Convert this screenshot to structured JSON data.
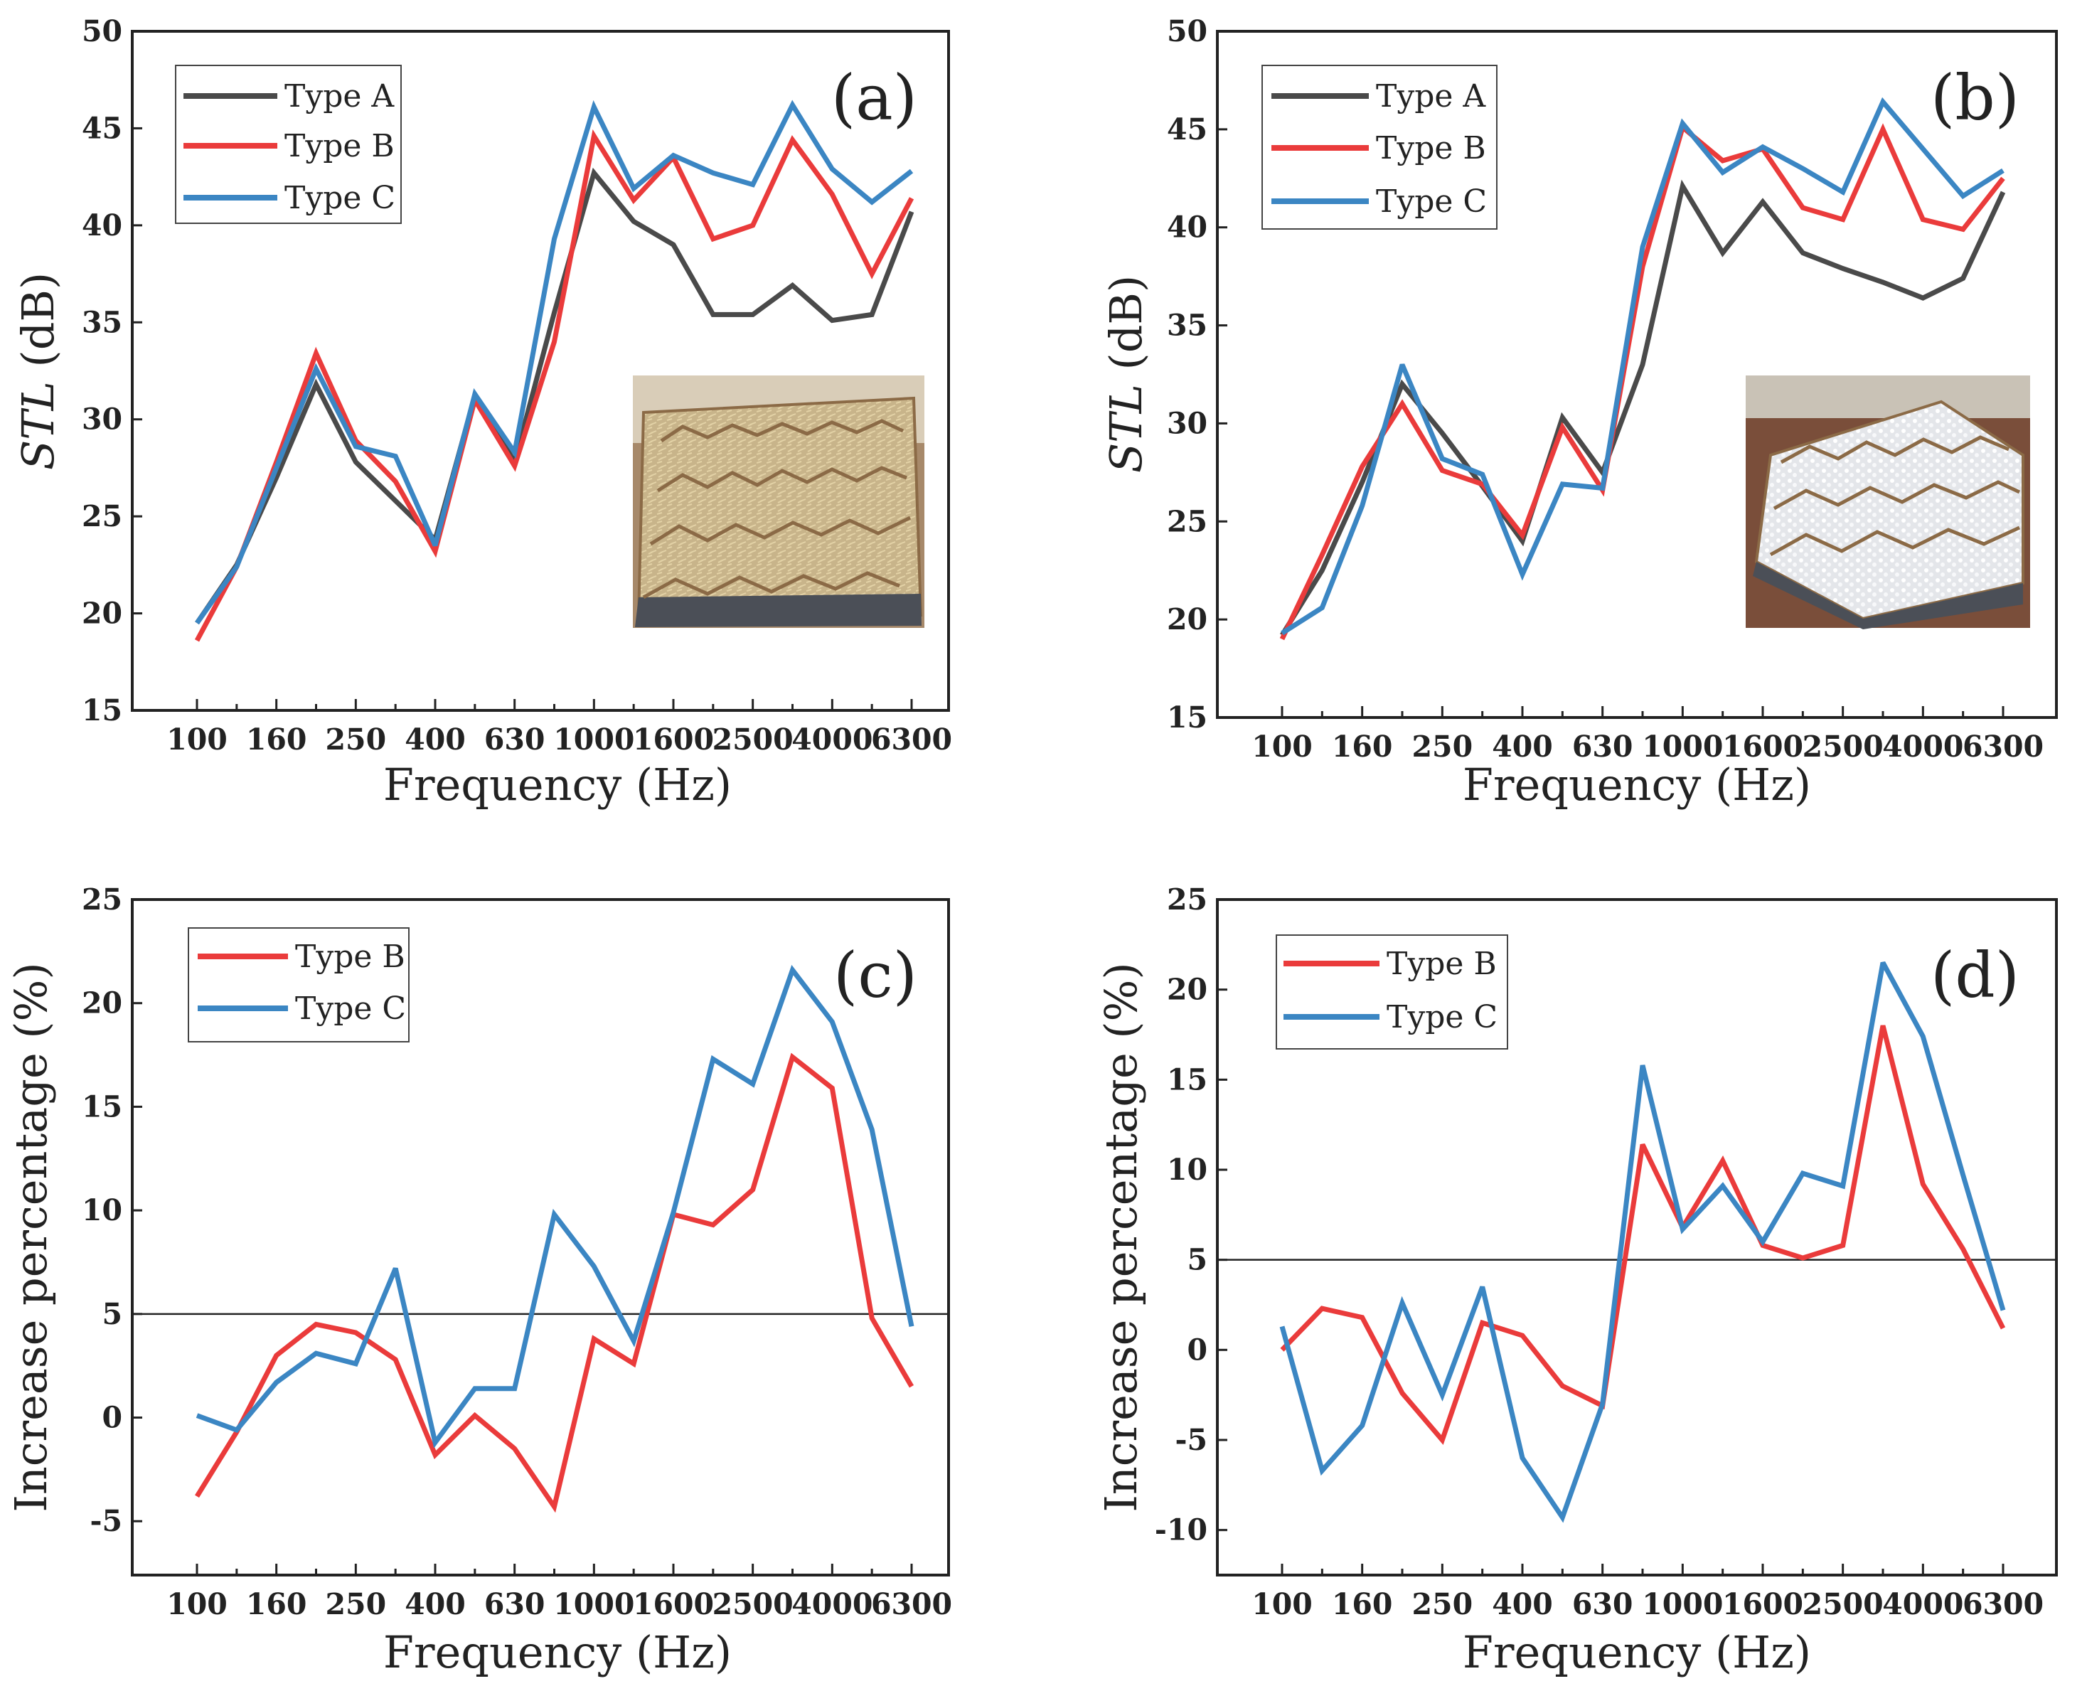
{
  "colors": {
    "type_a": "#4a4a4a",
    "type_b": "#ea3b3b",
    "type_c": "#3b86c3",
    "axis": "#222222",
    "reference_line": "#222222"
  },
  "chart_data": [
    {
      "panel": "(a)",
      "type": "line",
      "xlabel": "Frequency (Hz)",
      "ylabel_italic": "STL",
      "ylabel_rest": " (dB)",
      "ylim": [
        15,
        50
      ],
      "yticks": [
        15,
        20,
        25,
        30,
        35,
        40,
        45,
        50
      ],
      "xtick_labels": [
        "100",
        "160",
        "250",
        "400",
        "630",
        "1000",
        "1600",
        "2500",
        "4000",
        "6300"
      ],
      "legend_position": "top-left",
      "inset_image": "photo of hexagonal honeycomb panel filled with straw-like fibres",
      "x": [
        100,
        125,
        160,
        200,
        250,
        315,
        400,
        500,
        630,
        800,
        1000,
        1250,
        1600,
        2000,
        2500,
        3150,
        4000,
        5000,
        6300
      ],
      "series": [
        {
          "name": "Type A",
          "color_key": "type_a",
          "values": [
            19.5,
            22.5,
            27.0,
            31.8,
            27.8,
            25.8,
            23.8,
            31.2,
            27.8,
            35.5,
            42.7,
            40.2,
            39.0,
            35.4,
            35.4,
            36.9,
            35.1,
            35.4,
            40.7
          ]
        },
        {
          "name": "Type B",
          "color_key": "type_b",
          "values": [
            18.6,
            22.4,
            27.8,
            33.4,
            28.9,
            26.8,
            23.2,
            31.0,
            27.6,
            34.0,
            44.6,
            41.3,
            43.5,
            39.3,
            40.0,
            44.4,
            41.6,
            37.5,
            41.4
          ]
        },
        {
          "name": "Type C",
          "color_key": "type_c",
          "values": [
            19.5,
            22.4,
            27.5,
            32.6,
            28.6,
            28.1,
            23.5,
            31.3,
            28.3,
            39.3,
            46.1,
            41.9,
            43.6,
            42.7,
            42.1,
            46.2,
            42.9,
            41.2,
            42.8
          ]
        }
      ]
    },
    {
      "panel": "(b)",
      "type": "line",
      "xlabel": "Frequency (Hz)",
      "ylabel_italic": "STL",
      "ylabel_rest": " (dB)",
      "ylim": [
        15,
        50
      ],
      "yticks": [
        15,
        20,
        25,
        30,
        35,
        40,
        45,
        50
      ],
      "xtick_labels": [
        "100",
        "160",
        "250",
        "400",
        "630",
        "1000",
        "1600",
        "2500",
        "4000",
        "6300"
      ],
      "legend_position": "top-left",
      "inset_image": "photo of hexagonal honeycomb panel filled with white granules",
      "x": [
        100,
        125,
        160,
        200,
        250,
        315,
        400,
        500,
        630,
        800,
        1000,
        1250,
        1600,
        2000,
        2500,
        3150,
        4000,
        5000,
        6300
      ],
      "series": [
        {
          "name": "Type A",
          "color_key": "type_a",
          "values": [
            19.2,
            22.5,
            27.0,
            32.0,
            29.5,
            26.8,
            24.0,
            30.3,
            27.5,
            33.0,
            42.1,
            38.7,
            41.3,
            38.7,
            37.9,
            37.2,
            36.4,
            37.4,
            41.8
          ]
        },
        {
          "name": "Type B",
          "color_key": "type_b",
          "values": [
            19.0,
            23.3,
            27.8,
            31.0,
            27.6,
            26.9,
            24.3,
            29.8,
            26.6,
            38.0,
            45.1,
            43.4,
            44.0,
            41.0,
            40.4,
            45.0,
            40.4,
            39.9,
            42.5
          ]
        },
        {
          "name": "Type C",
          "color_key": "type_c",
          "values": [
            19.3,
            20.6,
            25.8,
            33.0,
            28.2,
            27.4,
            22.3,
            26.9,
            26.7,
            39.0,
            45.3,
            42.8,
            44.1,
            43.0,
            41.8,
            46.4,
            44.0,
            41.6,
            42.9
          ]
        }
      ]
    },
    {
      "panel": "(c)",
      "type": "line",
      "xlabel": "Frequency (Hz)",
      "ylabel_italic": "",
      "ylabel_rest": "Increase percentage (%)",
      "ylim": [
        -7.6,
        25
      ],
      "yticks": [
        -5,
        0,
        5,
        10,
        15,
        20,
        25
      ],
      "xtick_labels": [
        "100",
        "160",
        "250",
        "400",
        "630",
        "1000",
        "1600",
        "2500",
        "4000",
        "6300"
      ],
      "legend_position": "top-left",
      "reference_line": 5,
      "x": [
        100,
        125,
        160,
        200,
        250,
        315,
        400,
        500,
        630,
        800,
        1000,
        1250,
        1600,
        2000,
        2500,
        3150,
        4000,
        5000,
        6300
      ],
      "series": [
        {
          "name": "Type B",
          "color_key": "type_b",
          "values": [
            -3.8,
            -0.7,
            3.0,
            4.5,
            4.1,
            2.8,
            -1.8,
            0.1,
            -1.5,
            -4.3,
            3.8,
            2.6,
            9.8,
            9.3,
            11.0,
            17.4,
            15.9,
            4.8,
            1.5
          ]
        },
        {
          "name": "Type C",
          "color_key": "type_c",
          "values": [
            0.1,
            -0.6,
            1.7,
            3.1,
            2.6,
            7.2,
            -1.2,
            1.4,
            1.4,
            9.8,
            7.3,
            3.7,
            9.9,
            17.3,
            16.1,
            21.6,
            19.1,
            13.9,
            4.4
          ]
        }
      ]
    },
    {
      "panel": "(d)",
      "type": "line",
      "xlabel": "Frequency (Hz)",
      "ylabel_italic": "",
      "ylabel_rest": "Increase percentage (%)",
      "ylim": [
        -12.5,
        25
      ],
      "yticks": [
        -10,
        -5,
        0,
        5,
        10,
        15,
        20,
        25
      ],
      "xtick_labels": [
        "100",
        "160",
        "250",
        "400",
        "630",
        "1000",
        "1600",
        "2500",
        "4000",
        "6300"
      ],
      "legend_position": "top-left",
      "reference_line": 5,
      "x": [
        100,
        125,
        160,
        200,
        250,
        315,
        400,
        500,
        630,
        800,
        1000,
        1250,
        1600,
        2000,
        2500,
        3150,
        4000,
        5000,
        6300
      ],
      "series": [
        {
          "name": "Type B",
          "color_key": "type_b",
          "values": [
            0.0,
            2.3,
            1.8,
            -2.4,
            -5.0,
            1.5,
            0.8,
            -2.0,
            -3.1,
            11.4,
            6.8,
            10.5,
            5.8,
            5.1,
            5.8,
            18.0,
            9.2,
            5.6,
            1.2
          ]
        },
        {
          "name": "Type C",
          "color_key": "type_c",
          "values": [
            1.3,
            -6.7,
            -4.2,
            2.6,
            -2.5,
            3.5,
            -6.0,
            -9.3,
            -3.0,
            15.8,
            6.7,
            9.1,
            6.0,
            9.8,
            9.1,
            21.5,
            17.4,
            9.7,
            2.2
          ]
        }
      ]
    }
  ]
}
